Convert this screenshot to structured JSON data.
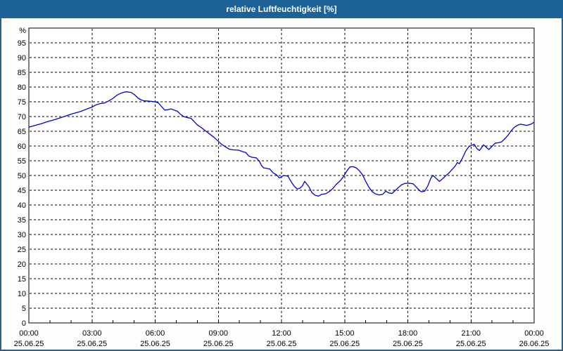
{
  "window": {
    "title": "relative Luftfeuchtigkeit [%]"
  },
  "colors": {
    "titlebar_bg": "#1c6296",
    "titlebar_text": "#ffffff",
    "frame_border": "#2a5f8e",
    "page_bg": "#fdfdfb",
    "plot_bg": "#ffffff",
    "grid": "#000000",
    "axis": "#000000",
    "line": "#0000cc",
    "label_text": "#000000"
  },
  "chart_data": {
    "type": "line",
    "title": "relative Luftfeuchtigkeit [%]",
    "ylabel": "%",
    "xlabel": "",
    "xlim_hours": [
      0,
      24
    ],
    "ylim": [
      0,
      100
    ],
    "yticks": [
      0,
      5,
      10,
      15,
      20,
      25,
      30,
      35,
      40,
      45,
      50,
      55,
      60,
      65,
      70,
      75,
      80,
      85,
      90,
      95
    ],
    "hour_tick_interval": 1,
    "grid": "dashed",
    "legend_position": "none",
    "xticks": [
      {
        "hour": 0,
        "time": "00:00",
        "date": "25.06.25"
      },
      {
        "hour": 3,
        "time": "03:00",
        "date": "25.06.25"
      },
      {
        "hour": 6,
        "time": "06:00",
        "date": "25.06.25"
      },
      {
        "hour": 9,
        "time": "09:00",
        "date": "25.06.25"
      },
      {
        "hour": 12,
        "time": "12:00",
        "date": "25.06.25"
      },
      {
        "hour": 15,
        "time": "15:00",
        "date": "25.06.25"
      },
      {
        "hour": 18,
        "time": "18:00",
        "date": "25.06.25"
      },
      {
        "hour": 21,
        "time": "21:00",
        "date": "25.06.25"
      },
      {
        "hour": 24,
        "time": "00:00",
        "date": "26.06.25"
      }
    ],
    "series": [
      {
        "name": "relative Luftfeuchtigkeit [%]",
        "points": [
          [
            0,
            66.4
          ],
          [
            0.3,
            67.0
          ],
          [
            0.6,
            67.6
          ],
          [
            0.9,
            68.3
          ],
          [
            1.2,
            68.9
          ],
          [
            1.5,
            69.6
          ],
          [
            1.8,
            70.3
          ],
          [
            2.1,
            71.0
          ],
          [
            2.45,
            71.7
          ],
          [
            2.8,
            72.7
          ],
          [
            3.0,
            73.2
          ],
          [
            3.2,
            74.0
          ],
          [
            3.4,
            74.4
          ],
          [
            3.6,
            74.6
          ],
          [
            3.8,
            75.3
          ],
          [
            4.0,
            76.2
          ],
          [
            4.2,
            77.3
          ],
          [
            4.4,
            78.0
          ],
          [
            4.6,
            78.4
          ],
          [
            4.85,
            78.2
          ],
          [
            5.0,
            77.5
          ],
          [
            5.2,
            76.2
          ],
          [
            5.35,
            75.6
          ],
          [
            5.5,
            75.3
          ],
          [
            5.75,
            75.2
          ],
          [
            6.0,
            75.0
          ],
          [
            6.15,
            74.6
          ],
          [
            6.3,
            73.4
          ],
          [
            6.45,
            72.2
          ],
          [
            6.6,
            72.3
          ],
          [
            6.75,
            72.6
          ],
          [
            6.9,
            72.2
          ],
          [
            7.05,
            71.8
          ],
          [
            7.2,
            70.8
          ],
          [
            7.35,
            70.0
          ],
          [
            7.55,
            69.6
          ],
          [
            7.7,
            69.4
          ],
          [
            7.85,
            68.3
          ],
          [
            8.0,
            67.2
          ],
          [
            8.2,
            66.2
          ],
          [
            8.4,
            65.1
          ],
          [
            8.6,
            64.0
          ],
          [
            8.8,
            62.9
          ],
          [
            9.0,
            61.6
          ],
          [
            9.15,
            60.6
          ],
          [
            9.3,
            59.9
          ],
          [
            9.5,
            59.0
          ],
          [
            9.7,
            58.7
          ],
          [
            9.95,
            58.6
          ],
          [
            10.15,
            58.1
          ],
          [
            10.3,
            57.8
          ],
          [
            10.45,
            56.6
          ],
          [
            10.6,
            56.2
          ],
          [
            10.8,
            56.0
          ],
          [
            10.95,
            54.8
          ],
          [
            11.05,
            53.4
          ],
          [
            11.15,
            52.6
          ],
          [
            11.3,
            52.4
          ],
          [
            11.45,
            52.2
          ],
          [
            11.6,
            50.9
          ],
          [
            11.75,
            50.3
          ],
          [
            11.9,
            49.2
          ],
          [
            12.0,
            49.6
          ],
          [
            12.1,
            50.0
          ],
          [
            12.3,
            49.8
          ],
          [
            12.45,
            48.0
          ],
          [
            12.6,
            46.4
          ],
          [
            12.75,
            45.4
          ],
          [
            12.9,
            45.8
          ],
          [
            13.0,
            46.6
          ],
          [
            13.1,
            48.0
          ],
          [
            13.3,
            46.2
          ],
          [
            13.45,
            44.1
          ],
          [
            13.6,
            43.3
          ],
          [
            13.75,
            43.0
          ],
          [
            13.9,
            43.6
          ],
          [
            14.1,
            43.8
          ],
          [
            14.3,
            44.7
          ],
          [
            14.45,
            45.7
          ],
          [
            14.6,
            47.0
          ],
          [
            14.8,
            48.3
          ],
          [
            14.95,
            49.7
          ],
          [
            15.1,
            51.5
          ],
          [
            15.25,
            52.9
          ],
          [
            15.4,
            53.0
          ],
          [
            15.55,
            52.6
          ],
          [
            15.7,
            51.6
          ],
          [
            15.85,
            50.2
          ],
          [
            16.0,
            48.0
          ],
          [
            16.15,
            46.0
          ],
          [
            16.3,
            44.6
          ],
          [
            16.45,
            43.8
          ],
          [
            16.65,
            43.4
          ],
          [
            16.8,
            43.6
          ],
          [
            16.95,
            44.7
          ],
          [
            17.1,
            44.1
          ],
          [
            17.25,
            43.9
          ],
          [
            17.4,
            44.9
          ],
          [
            17.55,
            45.9
          ],
          [
            17.7,
            46.8
          ],
          [
            17.85,
            47.3
          ],
          [
            18.05,
            47.4
          ],
          [
            18.25,
            47.2
          ],
          [
            18.4,
            46.1
          ],
          [
            18.55,
            44.9
          ],
          [
            18.65,
            44.5
          ],
          [
            18.8,
            44.7
          ],
          [
            18.95,
            46.5
          ],
          [
            19.1,
            49.2
          ],
          [
            19.2,
            50.0
          ],
          [
            19.35,
            49.0
          ],
          [
            19.5,
            48.0
          ],
          [
            19.65,
            48.9
          ],
          [
            19.8,
            49.9
          ],
          [
            19.95,
            50.8
          ],
          [
            20.1,
            52.0
          ],
          [
            20.25,
            53.2
          ],
          [
            20.35,
            54.4
          ],
          [
            20.45,
            54.0
          ],
          [
            20.6,
            56.0
          ],
          [
            20.75,
            58.3
          ],
          [
            20.9,
            59.8
          ],
          [
            21.05,
            60.3
          ],
          [
            21.15,
            60.6
          ],
          [
            21.3,
            59.0
          ],
          [
            21.4,
            58.5
          ],
          [
            21.5,
            59.4
          ],
          [
            21.6,
            60.4
          ],
          [
            21.75,
            59.4
          ],
          [
            21.85,
            58.8
          ],
          [
            22.0,
            59.9
          ],
          [
            22.15,
            61.0
          ],
          [
            22.3,
            61.1
          ],
          [
            22.45,
            61.4
          ],
          [
            22.6,
            62.4
          ],
          [
            22.75,
            63.6
          ],
          [
            22.9,
            65.1
          ],
          [
            23.05,
            66.3
          ],
          [
            23.2,
            67.0
          ],
          [
            23.35,
            67.4
          ],
          [
            23.5,
            67.2
          ],
          [
            23.65,
            67.0
          ],
          [
            23.85,
            67.4
          ],
          [
            24.0,
            68.1
          ]
        ]
      }
    ]
  }
}
